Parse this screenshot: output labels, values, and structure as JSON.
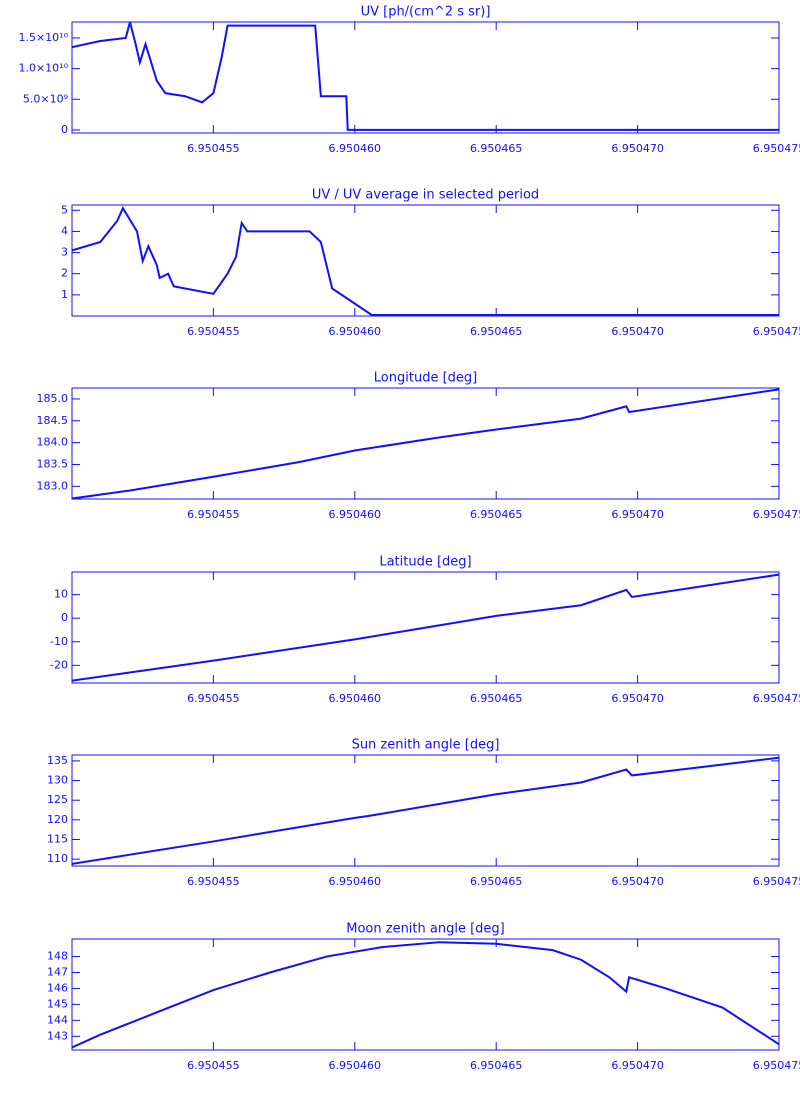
{
  "chart_data": [
    {
      "type": "line",
      "title": "UV [ph/(cm^2 s sr)]",
      "color": "#1010ff",
      "x": [
        6.95045,
        6.950451,
        6.9504519,
        6.95045205,
        6.95045225,
        6.9504524,
        6.9504526,
        6.9504528,
        6.950453,
        6.9504533,
        6.950454,
        6.9504546,
        6.950455,
        6.9504553,
        6.9504555,
        6.9504586,
        6.9504588,
        6.9504597,
        6.95045975,
        6.950475
      ],
      "values": [
        13500000000.0,
        14500000000.0,
        15000000000.0,
        17600000000.0,
        14000000000.0,
        11000000000.0,
        14000000000.0,
        11000000000.0,
        8000000000.0,
        6000000000.0,
        5500000000.0,
        4500000000.0,
        6000000000.0,
        12000000000.0,
        17000000000.0,
        17000000000.0,
        5500000000.0,
        5500000000.0,
        0,
        0
      ],
      "xlim": [
        6.95045,
        6.950475
      ],
      "xticks": [
        6.950455,
        {
          "value": 6.95046,
          "label": "6.950460"
        },
        6.950465,
        {
          "value": 6.95047,
          "label": "6.950470"
        },
        6.950475
      ],
      "ylim": [
        -500000000.0,
        17600000000.0
      ],
      "yticks": [
        0,
        {
          "value": 5000000000.0,
          "label": "5.0×10⁹"
        },
        {
          "value": 10000000000.0,
          "label": "1.0×10¹⁰"
        },
        {
          "value": 15000000000.0,
          "label": "1.5×10¹⁰"
        }
      ]
    },
    {
      "type": "line",
      "title": "UV / UV average in selected period",
      "color": "#1010ff",
      "x": [
        6.95045,
        6.950451,
        6.9504513,
        6.9504516,
        6.9504518,
        6.9504523,
        6.9504525,
        6.9504527,
        6.950453,
        6.9504531,
        6.9504534,
        6.9504536,
        6.950455,
        6.9504555,
        6.9504558,
        6.950456,
        6.9504562,
        6.9504584,
        6.9504588,
        6.9504592,
        6.9504606,
        6.950475
      ],
      "values": [
        3.1,
        3.5,
        4.0,
        4.5,
        5.1,
        4.0,
        2.6,
        3.3,
        2.4,
        1.8,
        2.0,
        1.4,
        1.05,
        2.0,
        2.8,
        4.4,
        4.0,
        4.0,
        3.5,
        1.3,
        0.05,
        0.05
      ],
      "xlim": [
        6.95045,
        6.950475
      ],
      "xticks": [
        6.950455,
        {
          "value": 6.95046,
          "label": "6.950460"
        },
        6.950465,
        {
          "value": 6.95047,
          "label": "6.950470"
        },
        6.950475
      ],
      "ylim": [
        0,
        5.25
      ],
      "yticks": [
        1,
        2,
        3,
        4,
        5
      ]
    },
    {
      "type": "line",
      "title": "Longitude [deg]",
      "color": "#1010ff",
      "x": [
        6.95045,
        6.950452,
        6.950455,
        6.950458,
        6.95046,
        6.950463,
        6.950465,
        6.950468,
        6.9504696,
        6.9504697,
        6.950475
      ],
      "values": [
        182.72,
        182.9,
        183.22,
        183.55,
        183.82,
        184.12,
        184.3,
        184.55,
        184.83,
        184.7,
        185.22
      ],
      "xlim": [
        6.95045,
        6.950475
      ],
      "xticks": [
        6.950455,
        {
          "value": 6.95046,
          "label": "6.950460"
        },
        6.950465,
        {
          "value": 6.95047,
          "label": "6.950470"
        },
        6.950475
      ],
      "ylim": [
        182.71,
        185.25
      ],
      "yticks": [
        {
          "value": 183,
          "label": "183.0"
        },
        {
          "value": 183.5,
          "label": "183.5"
        },
        {
          "value": 184,
          "label": "184.0"
        },
        {
          "value": 184.5,
          "label": "184.5"
        },
        {
          "value": 185,
          "label": "185.0"
        }
      ]
    },
    {
      "type": "line",
      "title": "Latitude [deg]",
      "color": "#1010ff",
      "x": [
        6.95045,
        6.950455,
        6.95046,
        6.950465,
        6.950468,
        6.9504696,
        6.9504698,
        6.950475
      ],
      "values": [
        -26.5,
        -18,
        -9,
        1,
        5.5,
        12,
        9,
        18.5
      ],
      "xlim": [
        6.95045,
        6.950475
      ],
      "xticks": [
        6.950455,
        {
          "value": 6.95046,
          "label": "6.950460"
        },
        6.950465,
        {
          "value": 6.95047,
          "label": "6.950470"
        },
        6.950475
      ],
      "ylim": [
        -27.5,
        19.6
      ],
      "yticks": [
        -20,
        -10,
        0,
        10
      ]
    },
    {
      "type": "line",
      "title": "Sun zenith angle [deg]",
      "color": "#1010ff",
      "x": [
        6.95045,
        6.950455,
        6.95046,
        6.9504605,
        6.950465,
        6.950468,
        6.9504696,
        6.9504698,
        6.950475
      ],
      "values": [
        108.8,
        114.5,
        120.5,
        121,
        126.5,
        129.5,
        132.8,
        131.3,
        135.8
      ],
      "xlim": [
        6.95045,
        6.950475
      ],
      "xticks": [
        6.950455,
        {
          "value": 6.95046,
          "label": "6.950460"
        },
        6.950465,
        {
          "value": 6.95047,
          "label": "6.950470"
        },
        6.950475
      ],
      "ylim": [
        108.25,
        136.5
      ],
      "yticks": [
        110,
        115,
        120,
        125,
        130,
        135
      ]
    },
    {
      "type": "line",
      "title": "Moon zenith angle [deg]",
      "color": "#1010ff",
      "x": [
        6.95045,
        6.950451,
        6.950453,
        6.950455,
        6.950457,
        6.950459,
        6.950461,
        6.950463,
        6.950465,
        6.950467,
        6.950468,
        6.950469,
        6.9504696,
        6.9504697,
        6.950471,
        6.950473,
        6.950475
      ],
      "values": [
        142.3,
        143.1,
        144.5,
        145.9,
        147.0,
        148.0,
        148.6,
        148.9,
        148.8,
        148.4,
        147.8,
        146.7,
        145.8,
        146.7,
        146.0,
        144.8,
        142.5
      ],
      "xlim": [
        6.95045,
        6.950475
      ],
      "xticks": [
        6.950455,
        {
          "value": 6.95046,
          "label": "6.950460"
        },
        6.950465,
        {
          "value": 6.95047,
          "label": "6.950470"
        },
        6.950475
      ],
      "ylim": [
        142.14,
        149.1
      ],
      "yticks": [
        143,
        144,
        145,
        146,
        147,
        148
      ]
    }
  ]
}
